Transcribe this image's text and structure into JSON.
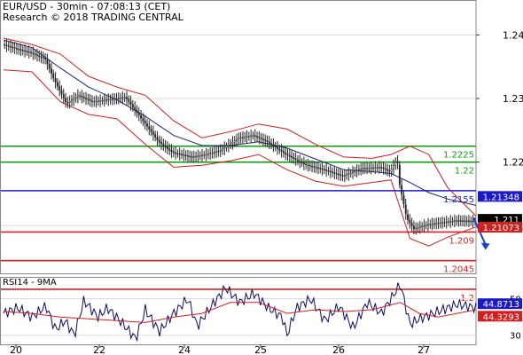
{
  "header": {
    "line1": "EUR/USD - 30min - 07:08:13 (CET)",
    "line2": "Research © 2018 TRADING CENTRAL"
  },
  "rsi_title": "RSI14 - 9MA",
  "colors": {
    "candle": "#222222",
    "band": "#cc1f1f",
    "ma": "#1a237e",
    "support": "#e02020",
    "resistance": "#129c12",
    "pivot": "#1a1acc",
    "arrow": "#1a3fd8",
    "rsi": "#0b0b66",
    "rsi_ma": "#d02020",
    "grid": "#d8d8d8",
    "label_bg_blue": "#1a1acc",
    "label_bg_red": "#d02020",
    "label_bg_black": "#000000"
  },
  "chart_data": {
    "type": "candlestick",
    "y_axis_range": [
      1.2025,
      1.2455
    ],
    "price_ticks": [
      "1.24",
      "1.23",
      "1.22",
      "1.21"
    ],
    "x_ticks": [
      "20",
      "22",
      "24",
      "25",
      "26",
      "27"
    ],
    "grid": true,
    "levels": [
      {
        "value": 1.2225,
        "label": "1.2225",
        "role": "resistance"
      },
      {
        "value": 1.22,
        "label": "1.22",
        "role": "resistance"
      },
      {
        "value": 1.2155,
        "label": "1.2155",
        "role": "pivot"
      },
      {
        "value": 1.209,
        "label": "1.209",
        "role": "support"
      },
      {
        "value": 1.2045,
        "label": "1.2045",
        "role": "support"
      },
      {
        "value": 1.2,
        "label": "1.2",
        "role": "support"
      }
    ],
    "price_markers": [
      {
        "value": 1.21348,
        "label": "1.21348",
        "style": "blue"
      },
      {
        "value": 1.211,
        "label": "1.211",
        "style": "black"
      },
      {
        "value": 1.21073,
        "label": "1.21073",
        "style": "red"
      }
    ],
    "price_path": [
      [
        0,
        1.2385
      ],
      [
        0.03,
        1.2378
      ],
      [
        0.06,
        1.2372
      ],
      [
        0.09,
        1.2362
      ],
      [
        0.11,
        1.2328
      ],
      [
        0.135,
        1.2292
      ],
      [
        0.16,
        1.2305
      ],
      [
        0.19,
        1.2295
      ],
      [
        0.22,
        1.2298
      ],
      [
        0.26,
        1.2302
      ],
      [
        0.3,
        1.2262
      ],
      [
        0.33,
        1.2232
      ],
      [
        0.36,
        1.2215
      ],
      [
        0.4,
        1.2208
      ],
      [
        0.43,
        1.2212
      ],
      [
        0.46,
        1.2218
      ],
      [
        0.5,
        1.2238
      ],
      [
        0.53,
        1.2242
      ],
      [
        0.56,
        1.2232
      ],
      [
        0.6,
        1.2212
      ],
      [
        0.64,
        1.2196
      ],
      [
        0.68,
        1.2188
      ],
      [
        0.72,
        1.2178
      ],
      [
        0.76,
        1.219
      ],
      [
        0.8,
        1.2192
      ],
      [
        0.82,
        1.2185
      ],
      [
        0.835,
        1.2205
      ],
      [
        0.84,
        1.2165
      ],
      [
        0.855,
        1.2112
      ],
      [
        0.87,
        1.2095
      ],
      [
        0.9,
        1.2102
      ],
      [
        0.93,
        1.2105
      ],
      [
        0.96,
        1.2108
      ],
      [
        1.0,
        1.2107
      ]
    ],
    "upper_band": [
      [
        0,
        1.2395
      ],
      [
        0.06,
        1.2385
      ],
      [
        0.12,
        1.237
      ],
      [
        0.18,
        1.2335
      ],
      [
        0.24,
        1.2318
      ],
      [
        0.3,
        1.2305
      ],
      [
        0.36,
        1.2265
      ],
      [
        0.42,
        1.2238
      ],
      [
        0.48,
        1.2248
      ],
      [
        0.54,
        1.226
      ],
      [
        0.6,
        1.2252
      ],
      [
        0.66,
        1.2228
      ],
      [
        0.72,
        1.2208
      ],
      [
        0.78,
        1.2206
      ],
      [
        0.82,
        1.2212
      ],
      [
        0.86,
        1.2225
      ],
      [
        0.9,
        1.2212
      ],
      [
        0.94,
        1.216
      ],
      [
        1.0,
        1.2115
      ]
    ],
    "lower_band": [
      [
        0,
        1.2345
      ],
      [
        0.06,
        1.2342
      ],
      [
        0.12,
        1.2295
      ],
      [
        0.18,
        1.2275
      ],
      [
        0.24,
        1.2268
      ],
      [
        0.3,
        1.2228
      ],
      [
        0.36,
        1.2192
      ],
      [
        0.42,
        1.2195
      ],
      [
        0.48,
        1.2202
      ],
      [
        0.54,
        1.2212
      ],
      [
        0.6,
        1.2188
      ],
      [
        0.66,
        1.217
      ],
      [
        0.72,
        1.2162
      ],
      [
        0.78,
        1.2168
      ],
      [
        0.82,
        1.2172
      ],
      [
        0.86,
        1.208
      ],
      [
        0.9,
        1.2068
      ],
      [
        0.94,
        1.2082
      ],
      [
        1.0,
        1.2098
      ]
    ],
    "moving_average": [
      [
        0,
        1.2392
      ],
      [
        0.06,
        1.238
      ],
      [
        0.12,
        1.2348
      ],
      [
        0.18,
        1.2318
      ],
      [
        0.24,
        1.2298
      ],
      [
        0.3,
        1.2272
      ],
      [
        0.36,
        1.2242
      ],
      [
        0.42,
        1.2226
      ],
      [
        0.48,
        1.2226
      ],
      [
        0.54,
        1.2232
      ],
      [
        0.6,
        1.2222
      ],
      [
        0.66,
        1.2205
      ],
      [
        0.72,
        1.2188
      ],
      [
        0.78,
        1.2185
      ],
      [
        0.82,
        1.2182
      ],
      [
        0.86,
        1.2168
      ],
      [
        0.9,
        1.2152
      ],
      [
        0.94,
        1.2142
      ],
      [
        1.0,
        1.2132
      ]
    ],
    "forecast_arrow": {
      "from": [
        0.995,
        1.2112
      ],
      "to": [
        1.02,
        1.2062
      ]
    },
    "rsi": {
      "y_range": [
        25,
        62
      ],
      "ticks": [
        "50",
        "30"
      ],
      "markers": [
        {
          "value": 44.8713,
          "label": "44.8713",
          "style": "blue"
        },
        {
          "value": 44.3293,
          "label": "44.3293",
          "style": "red"
        }
      ],
      "values": [
        [
          0,
          42
        ],
        [
          0.03,
          45
        ],
        [
          0.06,
          40
        ],
        [
          0.09,
          46
        ],
        [
          0.11,
          33
        ],
        [
          0.13,
          38
        ],
        [
          0.15,
          30
        ],
        [
          0.17,
          49
        ],
        [
          0.2,
          40
        ],
        [
          0.22,
          45
        ],
        [
          0.25,
          37
        ],
        [
          0.28,
          28
        ],
        [
          0.3,
          44
        ],
        [
          0.33,
          32
        ],
        [
          0.36,
          42
        ],
        [
          0.39,
          50
        ],
        [
          0.41,
          35
        ],
        [
          0.44,
          46
        ],
        [
          0.47,
          56
        ],
        [
          0.5,
          48
        ],
        [
          0.53,
          53
        ],
        [
          0.56,
          45
        ],
        [
          0.59,
          40
        ],
        [
          0.6,
          30
        ],
        [
          0.62,
          45
        ],
        [
          0.65,
          50
        ],
        [
          0.68,
          38
        ],
        [
          0.71,
          46
        ],
        [
          0.74,
          34
        ],
        [
          0.77,
          48
        ],
        [
          0.8,
          42
        ],
        [
          0.82,
          50
        ],
        [
          0.84,
          58
        ],
        [
          0.86,
          36
        ],
        [
          0.88,
          39
        ],
        [
          0.9,
          41
        ],
        [
          0.93,
          44
        ],
        [
          0.96,
          47
        ],
        [
          1.0,
          45
        ]
      ],
      "ma": [
        [
          0,
          43
        ],
        [
          0.06,
          42
        ],
        [
          0.12,
          40
        ],
        [
          0.18,
          39
        ],
        [
          0.24,
          38
        ],
        [
          0.3,
          37
        ],
        [
          0.36,
          40
        ],
        [
          0.42,
          42
        ],
        [
          0.48,
          48
        ],
        [
          0.54,
          48
        ],
        [
          0.6,
          42
        ],
        [
          0.66,
          44
        ],
        [
          0.72,
          43
        ],
        [
          0.78,
          44
        ],
        [
          0.84,
          48
        ],
        [
          0.88,
          42
        ],
        [
          0.92,
          40
        ],
        [
          0.96,
          42
        ],
        [
          1.0,
          44
        ]
      ]
    }
  }
}
